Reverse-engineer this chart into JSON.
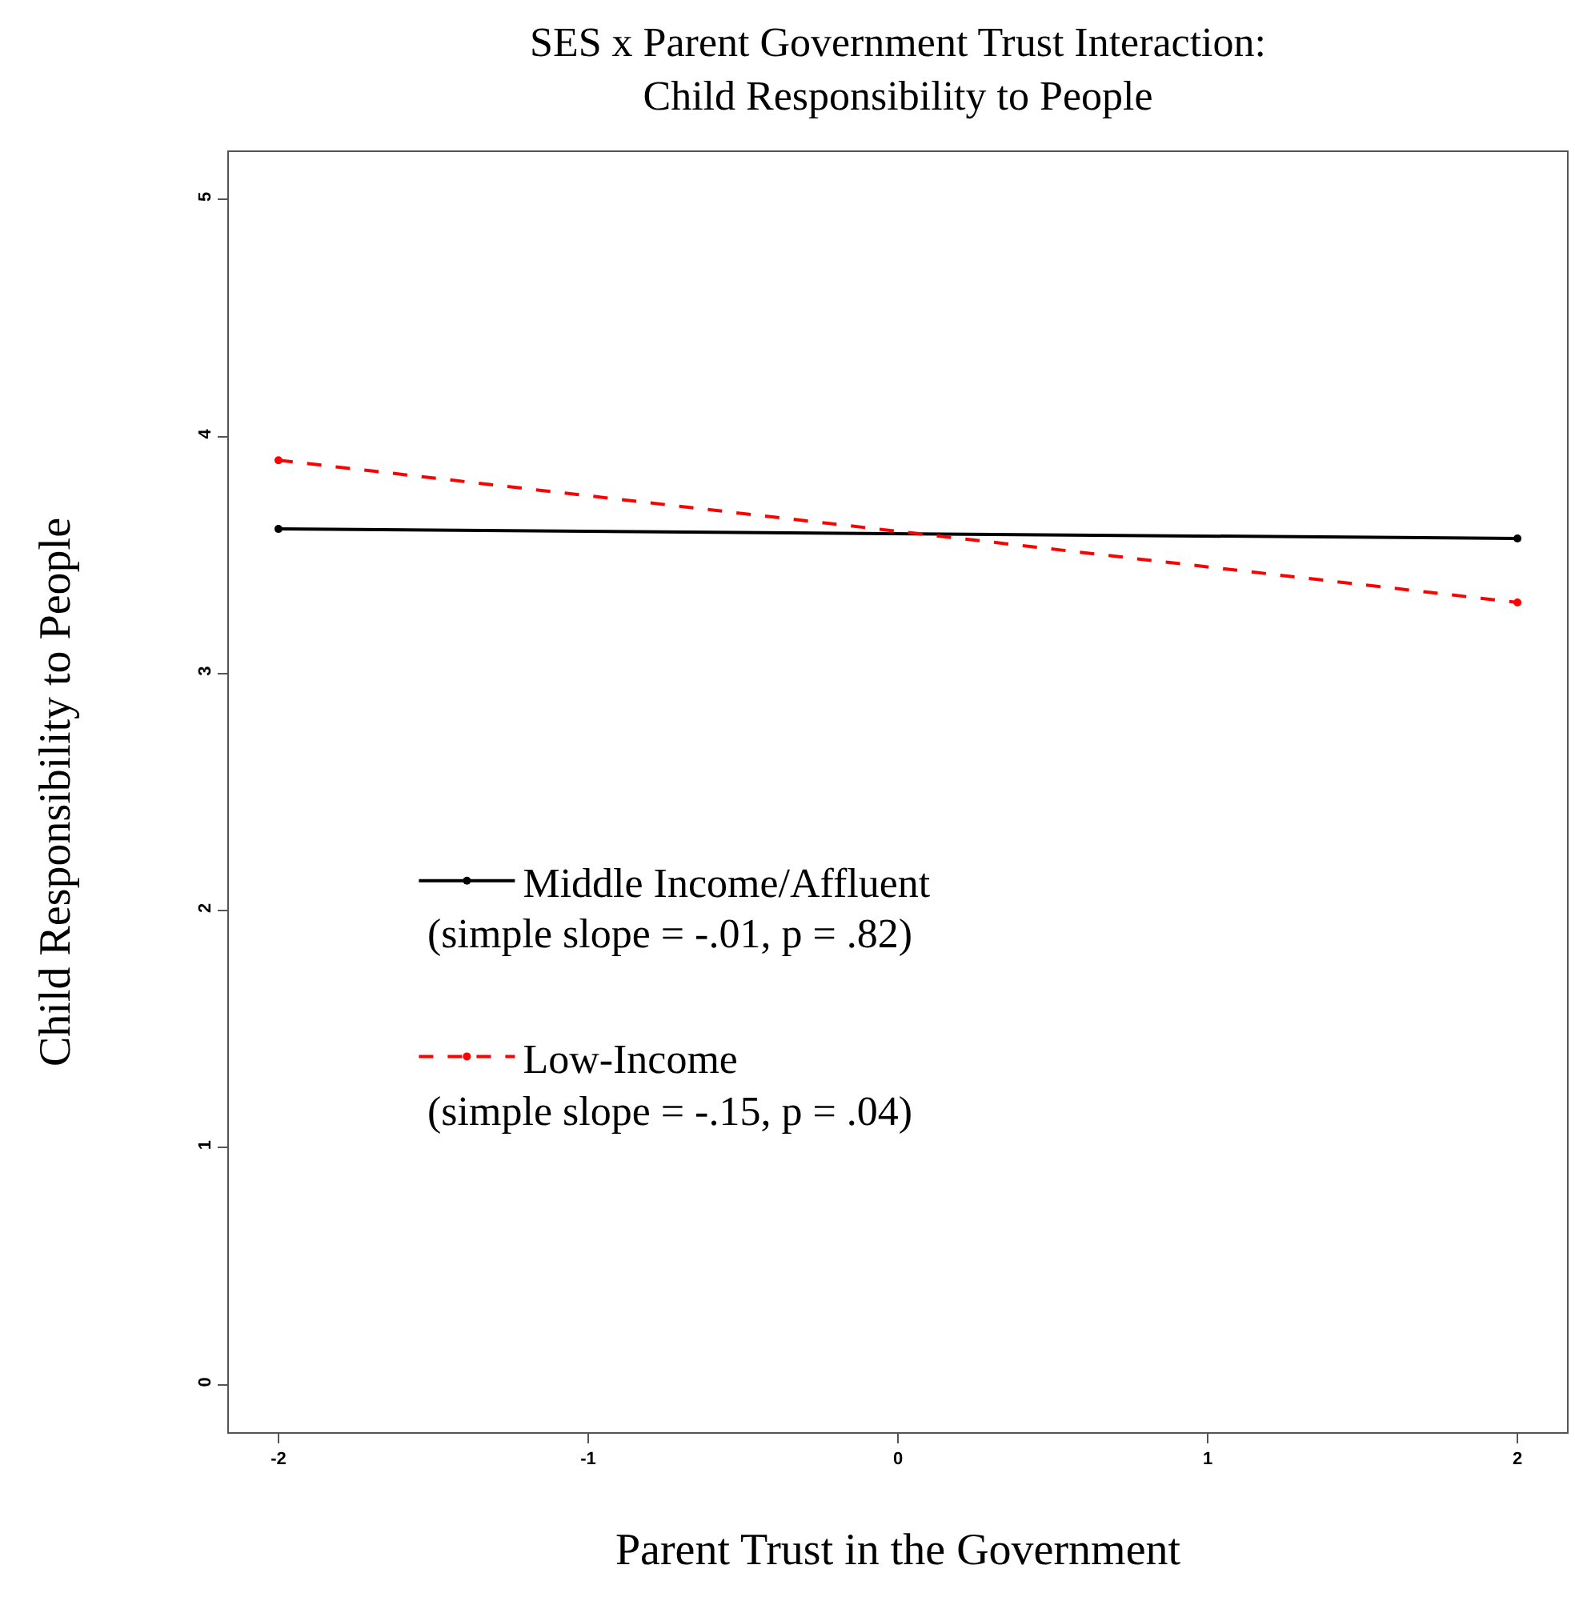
{
  "chart_data": {
    "type": "line",
    "title": "SES x Parent Government Trust Interaction:\nChild Responsibility to People",
    "xlabel": "Parent Trust in the Government",
    "ylabel": "Child Responsibility to People",
    "x": [
      -2,
      2
    ],
    "series": [
      {
        "name": "Middle Income/Affluent",
        "color": "#000000",
        "values": [
          3.61,
          3.57
        ],
        "line_style": "solid"
      },
      {
        "name": "Low-Income",
        "color": "#ff0000",
        "values": [
          3.9,
          3.3
        ],
        "line_style": "dashed"
      }
    ],
    "annotations": [
      "(simple slope = -.01, p = .82)",
      "(simple slope = -.15, p = .04)"
    ],
    "xlim": [
      -2.16,
      2.16
    ],
    "xticks": [
      -2,
      -1,
      0,
      1,
      2
    ],
    "ylim": [
      -0.2,
      5.2
    ],
    "yticks": [
      0,
      1,
      2,
      3,
      4,
      5
    ],
    "marker": "circle",
    "legend": "center left",
    "grid": false
  }
}
